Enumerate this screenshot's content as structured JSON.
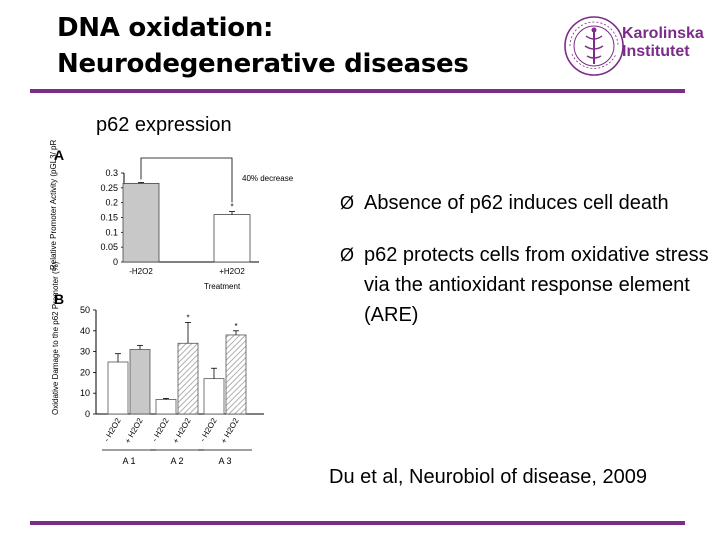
{
  "title": {
    "line1": "DNA oxidation:",
    "line2": "Neurodegenerative diseases"
  },
  "logo": {
    "line1": "Karolinska",
    "line2": "Institutet",
    "seal_text": "KAROLINSKA INSTITUTET ANNO 1810"
  },
  "subtitle": "p62 expression",
  "bullets": [
    {
      "arrow": "Ø",
      "text": "Absence of p62 induces cell death"
    },
    {
      "arrow": "Ø",
      "text": "p62 protects cells from oxidative stress via the antioxidant response element (ARE)"
    }
  ],
  "citation": "Du et al, Neurobiol of disease, 2009",
  "colors": {
    "accent": "#7b2c88",
    "bar_gray": "#c8c8c8",
    "bar_white": "#ffffff"
  },
  "chart_data": [
    {
      "type": "bar",
      "panel": "A",
      "ylabel": "Relative Promoter Activity (pGL3/ pRL)",
      "xlabel": "Treatment",
      "ylim": [
        0,
        0.3
      ],
      "yticks": [
        "0",
        "0.05",
        "0.1",
        "0.15",
        "0.2",
        "0.25",
        "0.3"
      ],
      "categories": [
        "-H2O2",
        "+H2O2"
      ],
      "values": [
        0.265,
        0.16
      ],
      "errors": [
        0.003,
        0.01
      ],
      "annotation": "40% decrease",
      "star": [
        false,
        true
      ]
    },
    {
      "type": "bar",
      "panel": "B",
      "ylabel": "Oxidative Damage to the p62 Promoter (%)",
      "ylim": [
        0,
        50
      ],
      "yticks": [
        "0",
        "10",
        "20",
        "30",
        "40",
        "50"
      ],
      "groups": [
        "A 1",
        "A 2",
        "A 3"
      ],
      "categories": [
        "- H2O2",
        "+ H2O2"
      ],
      "values": [
        [
          25,
          31
        ],
        [
          7,
          34
        ],
        [
          17,
          38
        ]
      ],
      "errors": [
        [
          4,
          2
        ],
        [
          0.5,
          10
        ],
        [
          5,
          2
        ]
      ],
      "star": [
        [
          false,
          false
        ],
        [
          false,
          true
        ],
        [
          false,
          true
        ]
      ]
    }
  ]
}
